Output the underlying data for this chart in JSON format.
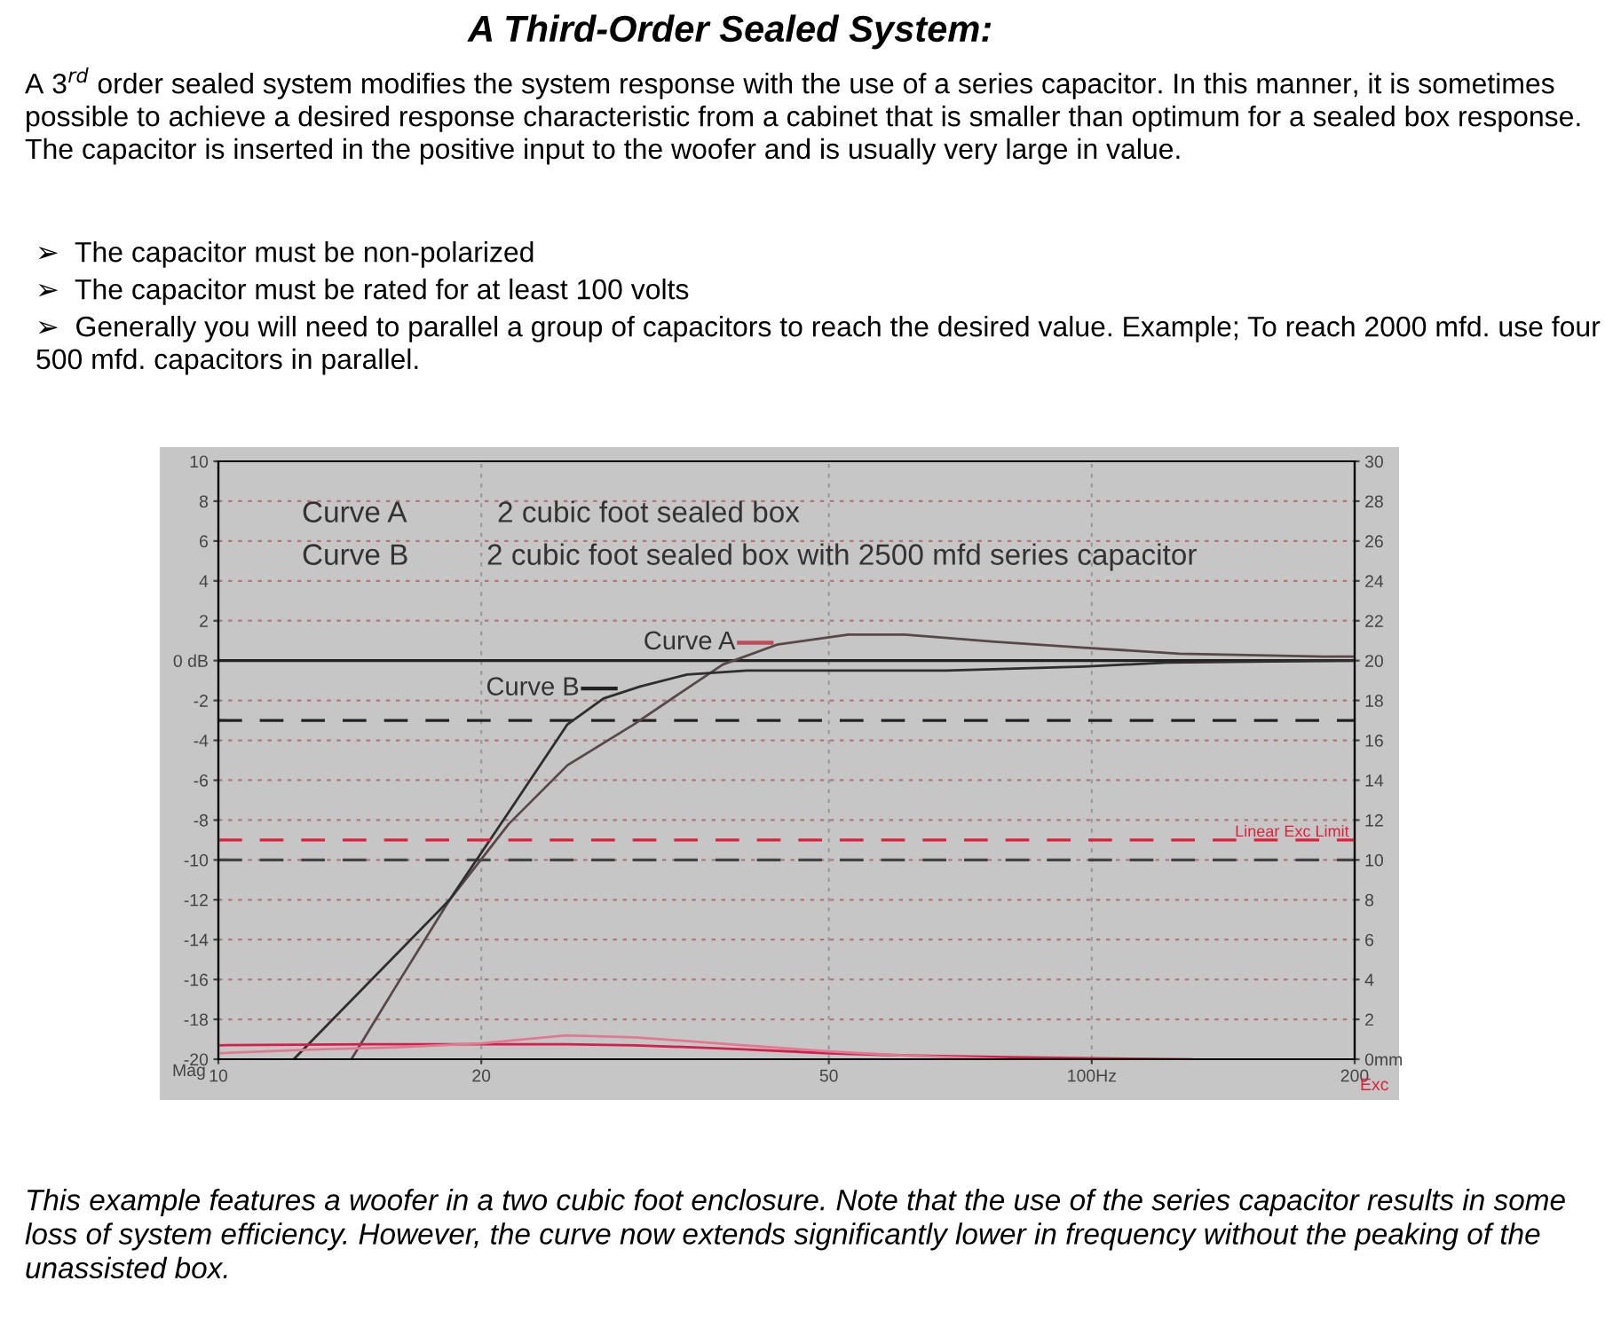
{
  "chart_data": {
    "type": "line",
    "title": "A Third-Order Sealed System:",
    "subtitle": "A 3$^{rd}$ order sealed system modifies the system response with the use of a series capacitor. In this manner, it is sometimes possible to achieve a desired response characteristic from a cabinet that is smaller than optimum for a sealed box response. The capacitor is inserted in the positive input to the woofer and is usually very large in value.",
    "ylabel": "Mag",
    "y2label": "Exc",
    "annotations": [
      "➢  The capacitor must be non-polarized",
      "➢  The capacitor must be rated for at least 100 volts",
      "➢  Generally you will need to parallel a group of capacitors to reach the desired value. Example; To reach 2000 mfd. use four 500 mfd. capacitors in parallel.",
      "Curve A",
      "2 cubic foot sealed box",
      "Curve B",
      "2 cubic foot sealed box with 2500 mfd series capacitor",
      "This example features a woofer in a two cubic foot enclosure. Note that the use of the series capacitor results in some loss of system efficiency. However, the curve now extends significantly lower in frequency without the peaking of the unassisted box.",
      {
        "text": "Curve A",
        "x": 43,
        "y": 0.9
      },
      {
        "text": "Curve B",
        "x": 28.5,
        "y": -1.4
      }
    ],
    "log": "x",
    "xlim": [
      10,
      200
    ],
    "xticks": [
      10,
      20,
      50,
      {
        "value": 100,
        "label": "100Hz"
      },
      200
    ],
    "ylim": [
      -20,
      10
    ],
    "yticks": [
      -20,
      -18,
      -16,
      -14,
      -12,
      -10,
      -8,
      -6,
      -4,
      -2,
      {
        "value": 0,
        "label": "0 dB"
      },
      2,
      4,
      6,
      8,
      10
    ],
    "y2lim": [
      0,
      30
    ],
    "y2ticks": [
      {
        "value": 0,
        "label": "0mm"
      },
      2,
      4,
      6,
      8,
      10,
      12,
      14,
      16,
      18,
      20,
      22,
      24,
      26,
      28,
      30
    ],
    "grid": true,
    "series": [
      {
        "color": "#5a4848",
        "x": [
          14.2,
          16.2,
          18.4,
          21.5,
          25.1,
          29.9,
          34.4,
          37.8,
          43.6,
          52.6,
          61.1,
          77.4,
          98,
          126,
          184,
          200
        ],
        "values": [
          -20,
          -15.9,
          -12.0,
          -8.2,
          -5.25,
          -3.2,
          -1.4,
          -0.2,
          0.8,
          1.3,
          1.3,
          0.95,
          0.65,
          0.35,
          0.2,
          0.2
        ]
      },
      {
        "color": "#2e2e2e",
        "x": [
          12.2,
          18.4,
          21.5,
          25.1,
          27.6,
          30.4,
          34.4,
          40.3,
          68.2,
          98,
          122,
          200
        ],
        "values": [
          -20,
          -12.0,
          -7.6,
          -3.2,
          -1.9,
          -1.3,
          -0.7,
          -0.5,
          -0.5,
          -0.3,
          -0.1,
          0
        ]
      },
      {
        "axis": "y2",
        "color": "#d41f4c",
        "x": [
          10,
          15,
          20,
          25,
          30,
          40,
          50,
          60,
          80,
          100,
          130
        ],
        "values": [
          0.7,
          0.75,
          0.75,
          0.75,
          0.7,
          0.5,
          0.3,
          0.2,
          0.1,
          0.05,
          0
        ]
      },
      {
        "axis": "y2",
        "color": "#e07a92",
        "x": [
          10,
          13,
          16,
          20,
          25,
          30,
          40,
          50,
          60,
          80
        ],
        "values": [
          0.3,
          0.5,
          0.6,
          0.8,
          1.2,
          1.1,
          0.7,
          0.4,
          0.2,
          0
        ]
      }
    ],
    "ref_lines": [
      {
        "axis": "y",
        "value": 0,
        "color": "#222222",
        "line_style": "solid"
      },
      {
        "axis": "y",
        "value": -3,
        "color": "#222222",
        "line_style": "dashed"
      },
      {
        "axis": "y2",
        "value": 11,
        "color": "#e0203a",
        "line_style": "dashed",
        "label": "Linear Exc Limit"
      },
      {
        "axis": "y",
        "value": -10,
        "color": "#444444",
        "line_style": "dashed"
      }
    ]
  }
}
